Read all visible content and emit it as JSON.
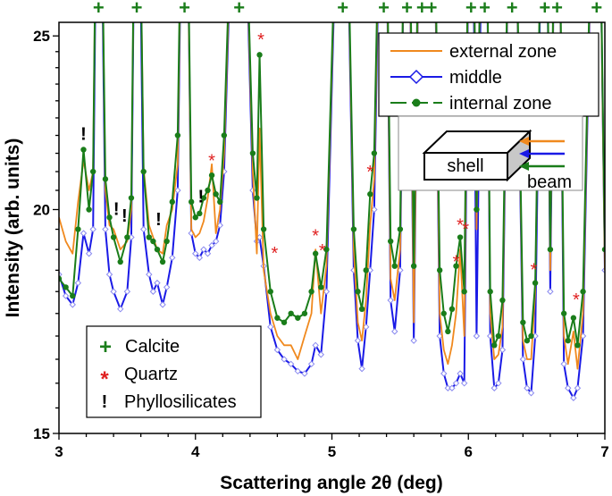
{
  "chart_data": {
    "type": "line",
    "xlabel": "Scattering angle 2θ (deg)",
    "ylabel": "Intensity (arb. units)",
    "xlim": [
      3,
      7
    ],
    "ylim": [
      15,
      25.44
    ],
    "y_scale": "log",
    "x_ticks": [
      "3",
      "4",
      "5",
      "6",
      "7"
    ],
    "y_ticks": [
      "15",
      "20",
      "25"
    ],
    "grid": false,
    "legend_placement": "top-right",
    "x": [
      3.0,
      3.05,
      3.1,
      3.14,
      3.18,
      3.22,
      3.25,
      3.29,
      3.34,
      3.37,
      3.4,
      3.45,
      3.5,
      3.53,
      3.57,
      3.62,
      3.66,
      3.69,
      3.72,
      3.76,
      3.79,
      3.83,
      3.87,
      3.92,
      3.97,
      4.0,
      4.03,
      4.06,
      4.09,
      4.12,
      4.15,
      4.18,
      4.21,
      4.32,
      4.42,
      4.45,
      4.47,
      4.5,
      4.55,
      4.6,
      4.65,
      4.7,
      4.75,
      4.8,
      4.85,
      4.88,
      4.92,
      4.96,
      5.08,
      5.16,
      5.19,
      5.22,
      5.25,
      5.28,
      5.31,
      5.38,
      5.43,
      5.46,
      5.5,
      5.55,
      5.6,
      5.66,
      5.73,
      5.79,
      5.82,
      5.85,
      5.88,
      5.91,
      5.94,
      5.97,
      6.02,
      6.06,
      6.12,
      6.16,
      6.19,
      6.22,
      6.25,
      6.32,
      6.4,
      6.43,
      6.46,
      6.49,
      6.56,
      6.6,
      6.65,
      6.7,
      6.73,
      6.77,
      6.8,
      6.84,
      6.94,
      7.0
    ],
    "series": [
      {
        "name": "external zone",
        "color": "#f0891e",
        "marker": "none",
        "values": [
          19.8,
          19.2,
          18.9,
          20.2,
          21.3,
          20.5,
          21.0,
          40,
          20.5,
          19.6,
          19.5,
          19.0,
          19.2,
          20.0,
          40,
          21.1,
          19.6,
          19.3,
          19.0,
          18.9,
          19.6,
          20.0,
          21.2,
          40,
          19.5,
          19.3,
          19.4,
          19.7,
          20.3,
          21.2,
          19.4,
          20.0,
          21.5,
          40,
          21.0,
          18.9,
          22.2,
          18.5,
          17.5,
          17.0,
          16.8,
          16.8,
          16.5,
          17.0,
          17.5,
          19.0,
          17.5,
          18.6,
          40,
          19.0,
          17.3,
          16.9,
          17.8,
          19.6,
          20.8,
          40,
          18.3,
          17.8,
          19.0,
          40,
          17.3,
          40,
          40,
          17.5,
          16.7,
          16.4,
          16.8,
          17.5,
          19.0,
          17.0,
          40,
          19.5,
          40,
          17.5,
          16.5,
          16.6,
          17.2,
          40,
          16.9,
          16.5,
          16.5,
          18.0,
          40,
          18.5,
          40,
          17.0,
          16.4,
          17.1,
          16.3,
          17.5,
          40,
          18.5
        ]
      },
      {
        "name": "middle",
        "color": "#1a1ae6",
        "marker": "open-diamond",
        "values": [
          18.4,
          17.9,
          17.7,
          18.2,
          19.4,
          18.9,
          19.5,
          40,
          19.5,
          18.4,
          18.0,
          17.6,
          18.0,
          19.3,
          40,
          19.5,
          18.4,
          18.0,
          18.2,
          17.7,
          18.1,
          18.8,
          20.5,
          40,
          19.4,
          18.9,
          18.8,
          19.0,
          18.9,
          19.1,
          19.2,
          19.6,
          21.0,
          40,
          20.5,
          19.2,
          19.3,
          18.6,
          17.2,
          16.7,
          16.5,
          16.4,
          16.25,
          16.2,
          16.4,
          16.8,
          16.6,
          18.0,
          40,
          18.5,
          16.9,
          16.3,
          17.2,
          18.5,
          20.0,
          40,
          17.8,
          17.1,
          18.5,
          40,
          16.9,
          40,
          40,
          17.0,
          16.2,
          15.9,
          15.9,
          16.0,
          16.2,
          16.0,
          40,
          17.0,
          40,
          17.0,
          15.9,
          16.0,
          16.7,
          40,
          16.5,
          15.9,
          15.8,
          17.0,
          40,
          18.0,
          40,
          16.4,
          15.9,
          15.7,
          15.9,
          17.0,
          40,
          18.5
        ]
      },
      {
        "name": "internal zone",
        "color": "#1a7d1a",
        "marker": "filled-circle",
        "values": [
          18.3,
          18.1,
          17.9,
          19.5,
          21.6,
          20.0,
          21.0,
          40,
          20.8,
          19.8,
          19.3,
          18.7,
          19.3,
          20.3,
          40,
          21.0,
          19.3,
          19.2,
          19.0,
          18.7,
          19.2,
          20.2,
          22.0,
          40,
          20.2,
          19.8,
          19.9,
          20.3,
          20.5,
          20.9,
          20.4,
          20.2,
          22.0,
          40,
          21.5,
          20.3,
          24.4,
          19.5,
          18.0,
          17.4,
          17.3,
          17.5,
          17.4,
          17.5,
          18.0,
          18.9,
          18.1,
          19.0,
          40,
          19.5,
          18.0,
          17.6,
          18.5,
          20.4,
          21.5,
          40,
          19.2,
          18.6,
          19.5,
          40,
          18.6,
          40,
          40,
          18.5,
          17.5,
          17.1,
          17.6,
          18.6,
          19.3,
          18.0,
          40,
          20.0,
          40,
          18.0,
          16.8,
          17.0,
          17.8,
          40,
          17.3,
          16.9,
          17.0,
          18.2,
          40,
          19.0,
          40,
          17.5,
          16.9,
          17.4,
          16.8,
          18.0,
          40,
          19.0
        ]
      }
    ],
    "annotations": {
      "calcite": {
        "symbol": "+",
        "color": "#1a7d1a",
        "x": [
          3.29,
          3.57,
          3.92,
          4.32,
          5.08,
          5.38,
          5.55,
          5.66,
          5.73,
          6.02,
          6.12,
          6.32,
          6.56,
          6.65,
          6.94
        ]
      },
      "quartz": {
        "symbol": "*",
        "color": "#e02020",
        "points": [
          [
            4.48,
            25.0
          ],
          [
            4.12,
            21.4
          ],
          [
            4.58,
            19.0
          ],
          [
            4.88,
            19.43
          ],
          [
            4.93,
            19.07
          ],
          [
            5.28,
            21.1
          ],
          [
            5.91,
            18.8
          ],
          [
            5.94,
            19.7
          ],
          [
            5.98,
            19.6
          ],
          [
            6.48,
            18.6
          ],
          [
            6.79,
            17.9
          ]
        ]
      },
      "phyllosilicates": {
        "symbol": "!",
        "color": "#000000",
        "points": [
          [
            3.18,
            22.1
          ],
          [
            3.42,
            20.07
          ],
          [
            3.48,
            19.9
          ],
          [
            3.73,
            19.8
          ],
          [
            4.04,
            20.4
          ]
        ]
      }
    },
    "legend": {
      "items": [
        "external zone",
        "middle",
        "internal zone"
      ]
    },
    "symbol_legend": {
      "items": [
        {
          "symbol": "+",
          "label": "Calcite",
          "color": "#1a7d1a"
        },
        {
          "symbol": "*",
          "label": "Quartz",
          "color": "#e02020"
        },
        {
          "symbol": "!",
          "label": "Phyllosilicates",
          "color": "#000000"
        }
      ]
    },
    "inset": {
      "block_label": "shell",
      "beam_label": "beam",
      "arrow_colors": [
        "#f0891e",
        "#1a1ae6",
        "#1a7d1a"
      ]
    }
  }
}
